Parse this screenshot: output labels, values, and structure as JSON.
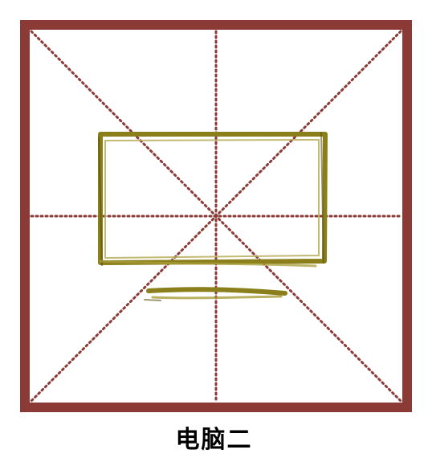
{
  "caption": {
    "text": "电脑二"
  },
  "colors": {
    "frame": "#8b3a36",
    "guide_lines": "#8b3a36",
    "drawing_stroke": "#8a7f1a",
    "background": "#ffffff",
    "caption_text": "#000000"
  },
  "icons": {
    "drawing": "computer-monitor-icon"
  }
}
